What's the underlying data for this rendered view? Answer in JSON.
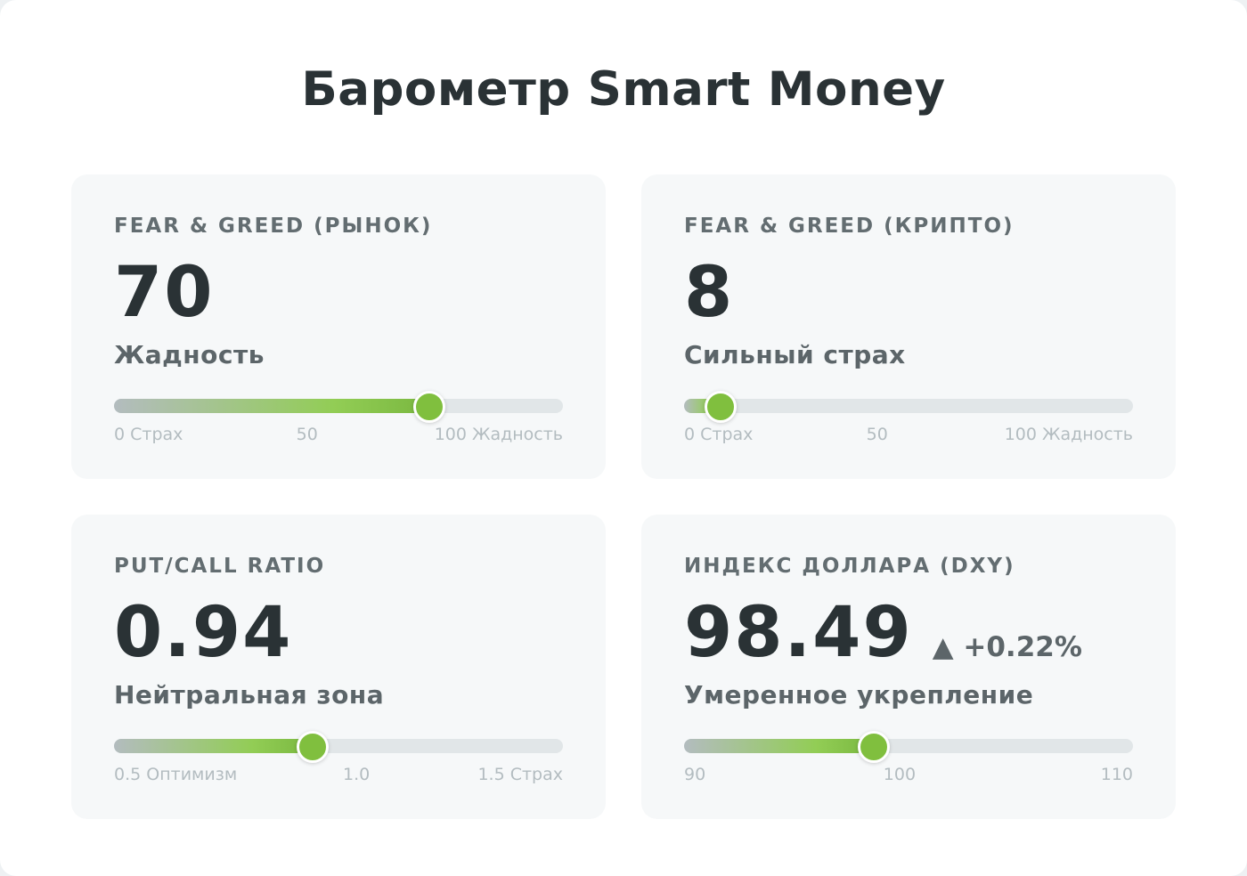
{
  "title": "Барометр Smart Money",
  "cards": [
    {
      "label": "FEAR & GREED (РЫНОК)",
      "value": "70",
      "change": "",
      "status": "Жадность",
      "level": 0.7,
      "scale": {
        "min": "0 Страх",
        "mid": "50",
        "max": "100 Жадность",
        "mid_pos": 0.43
      }
    },
    {
      "label": "FEAR & GREED (КРИПТО)",
      "value": "8",
      "change": "",
      "status": "Сильный страх",
      "level": 0.08,
      "scale": {
        "min": "0 Страх",
        "mid": "50",
        "max": "100 Жадность",
        "mid_pos": 0.43
      }
    },
    {
      "label": "PUT/CALL RATIO",
      "value": "0.94",
      "change": "",
      "status": "Нейтральная зона",
      "level": 0.44,
      "scale": {
        "min": "0.5 Оптимизм",
        "mid": "1.0",
        "max": "1.5 Страх",
        "mid_pos": 0.54
      }
    },
    {
      "label": "ИНДЕКС ДОЛЛАРА (DXY)",
      "value": "98.49",
      "change": "▲ +0.22%",
      "status": "Умеренное укрепление",
      "level": 0.42,
      "scale": {
        "min": "90",
        "mid": "100",
        "max": "110",
        "mid_pos": 0.48
      }
    }
  ]
}
